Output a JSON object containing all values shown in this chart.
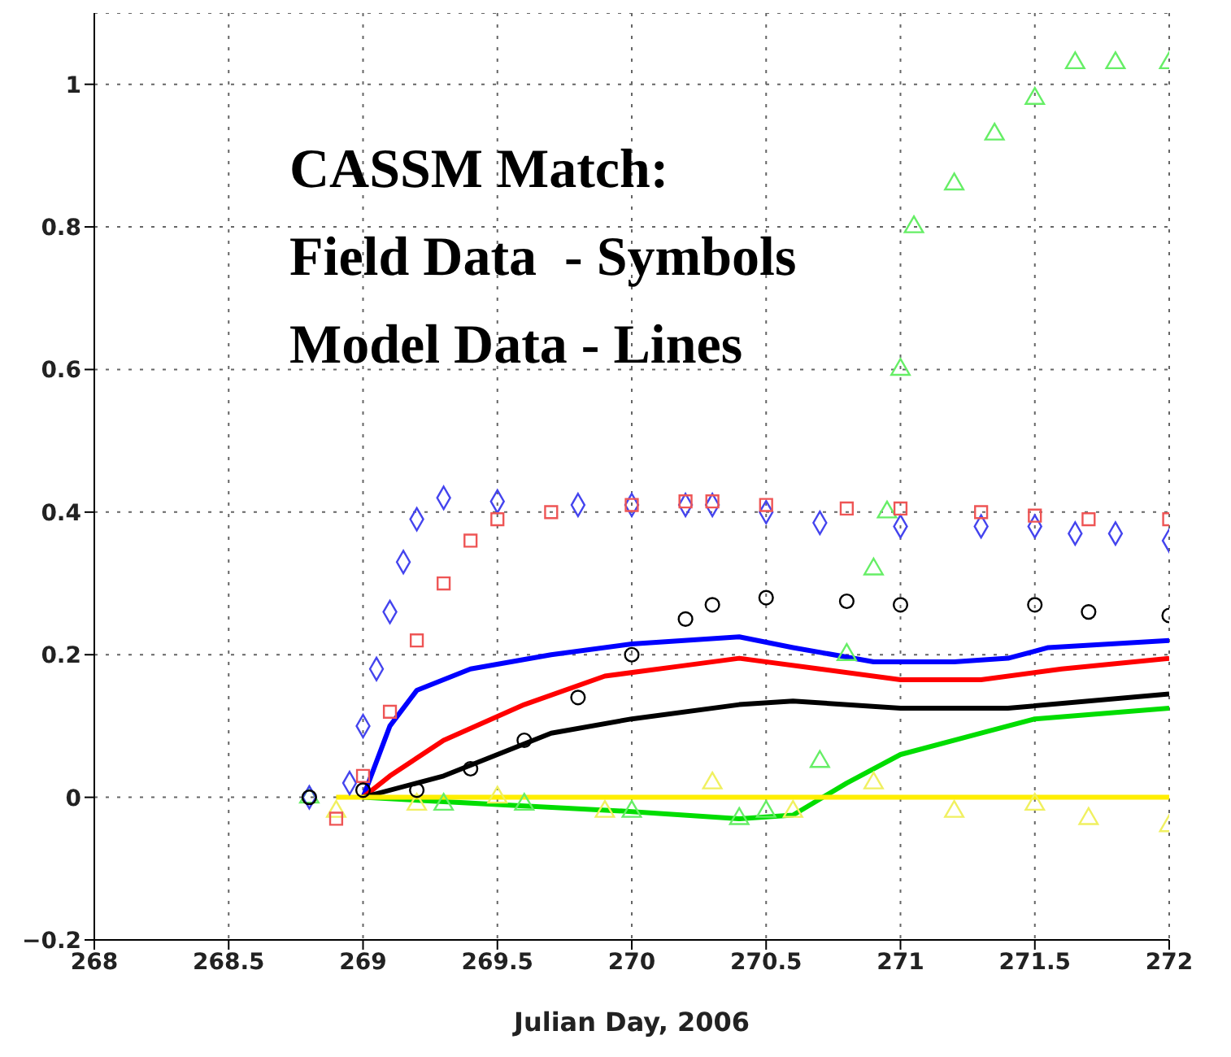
{
  "chart_data": {
    "type": "line",
    "xlabel": "Julian Day, 2006",
    "annotations": [
      "CASSM Match:",
      "Field Data  - Symbols",
      "Model Data - Lines"
    ],
    "xlim": [
      268,
      272
    ],
    "xticks": [
      268,
      268.5,
      269,
      269.5,
      270,
      270.5,
      271,
      271.5,
      272
    ],
    "ylim": [
      -0.2,
      1.1
    ],
    "yticks": [
      {
        "value": -0.2,
        "label": "−0.2"
      },
      0,
      0.2,
      0.4,
      0.6,
      0.8,
      1
    ],
    "grid": true,
    "line_style": "solid",
    "series": [
      {
        "type": "scatter",
        "marker": "triangle",
        "color": "#66ee66",
        "x": [
          268.8,
          269.3,
          269.6,
          270.0,
          270.4,
          270.5,
          270.7,
          270.8,
          270.9,
          270.95,
          271.0,
          271.05,
          271.2,
          271.35,
          271.5,
          271.65,
          271.8,
          272
        ],
        "values": [
          0,
          -0.01,
          -0.01,
          -0.02,
          -0.03,
          -0.02,
          0.05,
          0.2,
          0.32,
          0.4,
          0.6,
          0.8,
          0.86,
          0.93,
          0.98,
          1.03,
          1.03,
          1.03
        ]
      },
      {
        "type": "scatter",
        "marker": "triangle",
        "color": "#f0f060",
        "x": [
          268.9,
          269.2,
          269.5,
          269.9,
          270.3,
          270.6,
          270.9,
          271.2,
          271.5,
          271.7,
          272
        ],
        "values": [
          -0.02,
          -0.01,
          0,
          -0.02,
          0.02,
          -0.02,
          0.02,
          -0.02,
          -0.01,
          -0.03,
          -0.04
        ]
      },
      {
        "type": "scatter",
        "marker": "diamond",
        "color": "#4444ee",
        "x": [
          268.8,
          268.95,
          269.0,
          269.05,
          269.1,
          269.15,
          269.2,
          269.3,
          269.5,
          269.8,
          270.0,
          270.2,
          270.3,
          270.5,
          270.7,
          271.0,
          271.3,
          271.5,
          271.65,
          271.8,
          272
        ],
        "values": [
          0,
          0.02,
          0.1,
          0.18,
          0.26,
          0.33,
          0.39,
          0.42,
          0.415,
          0.41,
          0.41,
          0.41,
          0.41,
          0.4,
          0.385,
          0.38,
          0.38,
          0.38,
          0.37,
          0.37,
          0.36
        ]
      },
      {
        "type": "scatter",
        "marker": "square",
        "color": "#ee5555",
        "x": [
          268.9,
          269.0,
          269.1,
          269.2,
          269.3,
          269.4,
          269.5,
          269.7,
          270.0,
          270.2,
          270.3,
          270.5,
          270.8,
          271.0,
          271.3,
          271.5,
          271.7,
          272
        ],
        "values": [
          -0.03,
          0.03,
          0.12,
          0.22,
          0.3,
          0.36,
          0.39,
          0.4,
          0.41,
          0.415,
          0.415,
          0.41,
          0.405,
          0.405,
          0.4,
          0.395,
          0.39,
          0.39
        ]
      },
      {
        "type": "scatter",
        "marker": "circle",
        "color": "#000000",
        "x": [
          268.8,
          269.0,
          269.2,
          269.4,
          269.6,
          269.8,
          270.0,
          270.2,
          270.3,
          270.5,
          270.8,
          271.0,
          271.5,
          271.7,
          272
        ],
        "values": [
          0,
          0.01,
          0.01,
          0.04,
          0.08,
          0.14,
          0.2,
          0.25,
          0.27,
          0.28,
          0.275,
          0.27,
          0.27,
          0.26,
          0.255
        ]
      },
      {
        "color": "#0000ff",
        "x": [
          269.0,
          269.1,
          269.2,
          269.4,
          269.7,
          270.0,
          270.4,
          270.6,
          270.9,
          271.2,
          271.4,
          271.55,
          272
        ],
        "values": [
          0,
          0.1,
          0.15,
          0.18,
          0.2,
          0.215,
          0.225,
          0.21,
          0.19,
          0.19,
          0.195,
          0.21,
          0.22
        ]
      },
      {
        "color": "#ff0000",
        "x": [
          269.0,
          269.1,
          269.3,
          269.6,
          269.9,
          270.2,
          270.4,
          270.7,
          271.0,
          271.3,
          271.6,
          272
        ],
        "values": [
          0,
          0.03,
          0.08,
          0.13,
          0.17,
          0.185,
          0.195,
          0.18,
          0.165,
          0.165,
          0.18,
          0.195
        ]
      },
      {
        "color": "#000000",
        "x": [
          269.0,
          269.3,
          269.7,
          270.0,
          270.4,
          270.6,
          271.0,
          271.4,
          272
        ],
        "values": [
          0,
          0.03,
          0.09,
          0.11,
          0.13,
          0.135,
          0.125,
          0.125,
          0.145
        ]
      },
      {
        "color": "#00dd00",
        "x": [
          269.0,
          269.5,
          270.0,
          270.4,
          270.6,
          270.8,
          271.0,
          271.3,
          271.5,
          272
        ],
        "values": [
          0,
          -0.01,
          -0.02,
          -0.03,
          -0.025,
          0.02,
          0.06,
          0.09,
          0.11,
          0.125
        ]
      },
      {
        "color": "#ffee00",
        "x": [
          268.9,
          272
        ],
        "values": [
          0,
          0
        ]
      }
    ]
  }
}
